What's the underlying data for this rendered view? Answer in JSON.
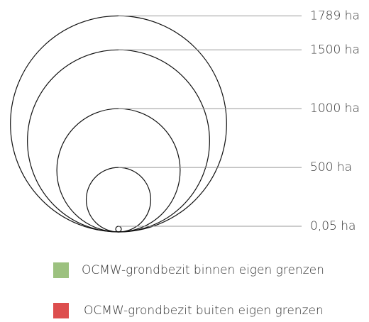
{
  "chart_data": {
    "type": "size-legend",
    "sizes": [
      {
        "value": 1789,
        "label": "1789 ha"
      },
      {
        "value": 1500,
        "label": "1500 ha"
      },
      {
        "value": 1000,
        "label": "1000 ha"
      },
      {
        "value": 500,
        "label": "500 ha"
      },
      {
        "value": 0.05,
        "label": "0,05 ha"
      }
    ],
    "legend": [
      {
        "name": "OCMW-grondbezit binnen eigen grenzen",
        "color": "#9cc17f"
      },
      {
        "name": "OCMW-grondbezit buiten eigen grenzen",
        "color": "#dd4e4e"
      }
    ]
  }
}
